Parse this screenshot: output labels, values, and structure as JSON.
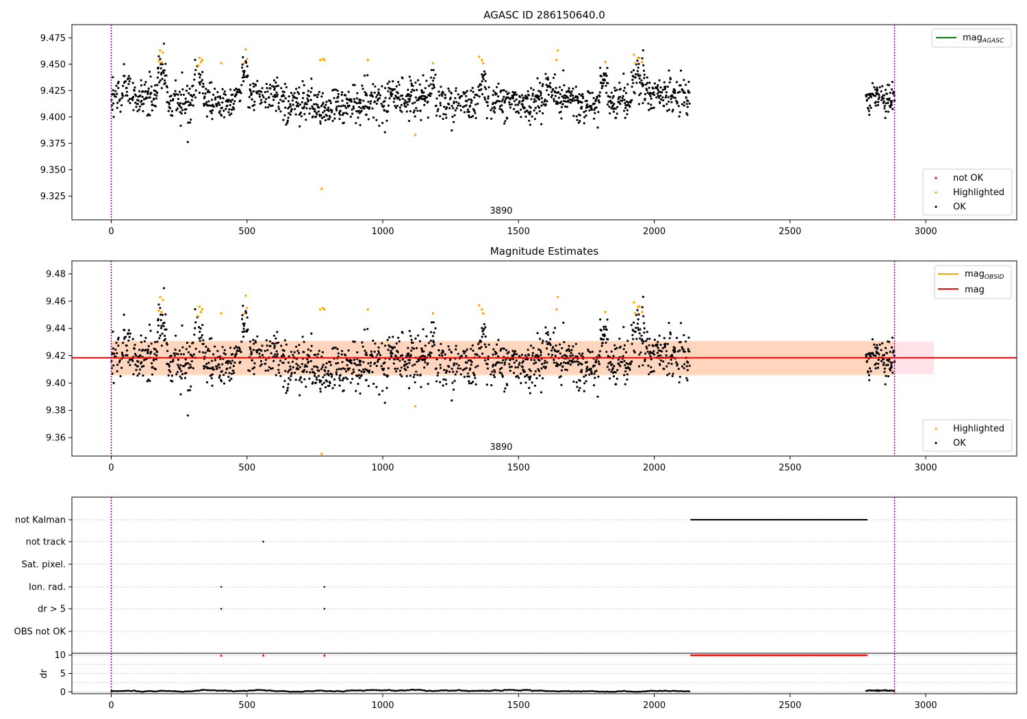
{
  "figure": {
    "title_top": "AGASC ID 286150640.0",
    "title_mid": "Magnitude Estimates",
    "obsid_label": "3890"
  },
  "colors": {
    "ok": "#000000",
    "highlighted": "#ffa500",
    "not_ok": "#ff0000",
    "mag_agasc": "#008000",
    "mag_obsid": "#ffa500",
    "mag": "#ff0000",
    "band_obsid": "#ffcc99",
    "band_mag": "#ffc0cb",
    "obs_line": "#800080",
    "grid": "#b0b0b0"
  },
  "chart_data": [
    {
      "type": "scatter",
      "title": "AGASC ID 286150640.0",
      "xlim": [
        -145,
        3335
      ],
      "ylim": [
        9.3025,
        9.4875
      ],
      "xticks": [
        "0",
        "500",
        "1000",
        "1500",
        "2000",
        "2500",
        "3000"
      ],
      "yticks": [
        "9.325",
        "9.350",
        "9.375",
        "9.400",
        "9.425",
        "9.450",
        "9.475"
      ],
      "obs_bounds": [
        0,
        2885
      ],
      "annotation": "3890",
      "legend_lines": [
        "mag$_{AGASC}$"
      ],
      "legend_points": [
        "not OK",
        "Highlighted",
        "OK"
      ],
      "series": [
        {
          "name": "OK",
          "description": "approx. 2100 points, mean ~9.418, spread ~0.012; data in x 0-2130 and 2780-2885"
        },
        {
          "name": "Highlighted",
          "x": [
            175,
            180,
            185,
            190,
            320,
            325,
            330,
            335,
            405,
            490,
            495,
            500,
            770,
            775,
            780,
            785,
            945,
            1120,
            1185,
            1355,
            1365,
            1370,
            1640,
            1645,
            1820,
            1925,
            1930,
            1940,
            1945,
            1955
          ],
          "y": [
            9.453,
            9.463,
            9.452,
            9.461,
            9.449,
            9.456,
            9.452,
            9.454,
            9.451,
            9.451,
            9.464,
            9.455,
            9.454,
            9.332,
            9.455,
            9.454,
            9.454,
            9.383,
            9.451,
            9.457,
            9.454,
            9.451,
            9.454,
            9.463,
            9.452,
            9.459,
            9.451,
            9.456,
            9.456,
            9.452
          ]
        },
        {
          "name": "not OK",
          "x": [],
          "y": []
        }
      ]
    },
    {
      "type": "scatter",
      "title": "Magnitude Estimates",
      "xlim": [
        -145,
        3335
      ],
      "ylim": [
        9.3465,
        9.4895
      ],
      "xticks": [
        "0",
        "500",
        "1000",
        "1500",
        "2000",
        "2500",
        "3000"
      ],
      "yticks": [
        "9.36",
        "9.38",
        "9.40",
        "9.42",
        "9.44",
        "9.46",
        "9.48"
      ],
      "obs_bounds": [
        0,
        2885
      ],
      "annotation": "3890",
      "legend_lines": [
        "mag$_{OBSID}$",
        "mag"
      ],
      "legend_points": [
        "Highlighted",
        "OK"
      ],
      "mag_obsid": {
        "value": 9.4185,
        "x_range": [
          0,
          3030
        ],
        "band": [
          9.4055,
          9.431
        ]
      },
      "mag": {
        "value": 9.4185,
        "x_range": [
          -145,
          3335
        ],
        "band": [
          9.4065,
          9.4305
        ]
      },
      "series": [
        {
          "name": "OK"
        },
        {
          "name": "Highlighted",
          "note": "same points as top panel; one outlier below axis at x=780"
        }
      ]
    },
    {
      "type": "scatter",
      "title": "",
      "xlim": [
        -145,
        3335
      ],
      "categories": [
        "not Kalman",
        "not track",
        "Sat. pixel.",
        "Ion. rad.",
        "dr > 5",
        "OBS not OK"
      ],
      "flags": {
        "not Kalman": {
          "x_range": [
            2135,
            2785
          ]
        },
        "not track": {
          "x": [
            560
          ]
        },
        "Sat. pixel.": {
          "x": []
        },
        "Ion. rad.": {
          "x": [
            405,
            785
          ]
        },
        "dr > 5": {
          "x": [
            405,
            785
          ]
        },
        "OBS not OK": {
          "x": []
        }
      }
    },
    {
      "type": "scatter",
      "title": "",
      "xlim": [
        -145,
        3335
      ],
      "ylim": [
        -0.5,
        10.5
      ],
      "ylabel": "dr",
      "yticks": [
        "0",
        "5",
        "10"
      ],
      "xticks": [
        "0",
        "500",
        "1000",
        "1500",
        "2000",
        "2500",
        "3000"
      ],
      "dr_capped_red": {
        "x": [
          405,
          560,
          785
        ],
        "x_range": [
          2135,
          2785
        ],
        "y": 10
      },
      "dr_ok": {
        "description": "dr values approx 0.0-0.8 for x 0-2130 and 2780-2885"
      }
    }
  ]
}
